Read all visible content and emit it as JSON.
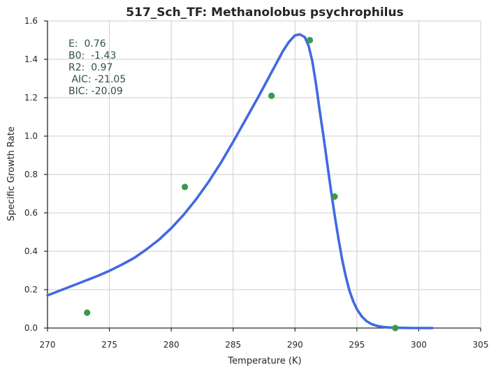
{
  "chart_data": {
    "type": "line",
    "title": "517_Sch_TF: Methanolobus psychrophilus",
    "xlabel": "Temperature (K)",
    "ylabel": "Specific Growth Rate",
    "xlim": [
      270,
      305
    ],
    "ylim": [
      0.0,
      1.6
    ],
    "xticks": [
      270,
      275,
      280,
      285,
      290,
      295,
      300,
      305
    ],
    "yticks": [
      0.0,
      0.2,
      0.4,
      0.6,
      0.8,
      1.0,
      1.2,
      1.4,
      1.6
    ],
    "xtick_labels": [
      "270",
      "275",
      "280",
      "285",
      "290",
      "295",
      "300",
      "305"
    ],
    "ytick_labels": [
      "0.0",
      "0.2",
      "0.4",
      "0.6",
      "0.8",
      "1.0",
      "1.2",
      "1.4",
      "1.6"
    ],
    "grid": true,
    "stats_text": [
      "E:  0.76",
      "B0:  -1.43",
      "R2:  0.97",
      " AIC: -21.05",
      "BIC: -20.09"
    ],
    "series": [
      {
        "kind": "line",
        "color": "#4169e1",
        "x": [
          270.0,
          271.0,
          272.0,
          273.0,
          274.0,
          275.0,
          276.0,
          277.0,
          278.0,
          279.0,
          280.0,
          281.0,
          282.0,
          283.0,
          284.0,
          285.0,
          286.0,
          287.0,
          288.0,
          288.5,
          289.0,
          289.5,
          290.0,
          290.4,
          290.8,
          291.1,
          291.4,
          291.7,
          292.0,
          292.3,
          292.6,
          292.9,
          293.2,
          293.5,
          293.8,
          294.1,
          294.4,
          294.7,
          295.0,
          295.4,
          295.8,
          296.2,
          296.7,
          297.2,
          297.8,
          298.5,
          299.5,
          300.5,
          301.1
        ],
        "y": [
          0.17,
          0.195,
          0.22,
          0.245,
          0.27,
          0.298,
          0.33,
          0.365,
          0.41,
          0.46,
          0.52,
          0.59,
          0.67,
          0.76,
          0.86,
          0.97,
          1.085,
          1.2,
          1.32,
          1.38,
          1.44,
          1.49,
          1.525,
          1.53,
          1.515,
          1.47,
          1.39,
          1.27,
          1.13,
          1.0,
          0.86,
          0.72,
          0.59,
          0.47,
          0.36,
          0.27,
          0.195,
          0.14,
          0.098,
          0.06,
          0.035,
          0.02,
          0.01,
          0.005,
          0.002,
          0.001,
          0.0,
          0.0,
          0.0
        ]
      },
      {
        "kind": "scatter",
        "color": "#3a9a48",
        "x": [
          273.2,
          281.1,
          288.1,
          291.2,
          293.2,
          298.1
        ],
        "y": [
          0.08,
          0.735,
          1.21,
          1.5,
          0.685,
          0.0
        ]
      }
    ]
  }
}
